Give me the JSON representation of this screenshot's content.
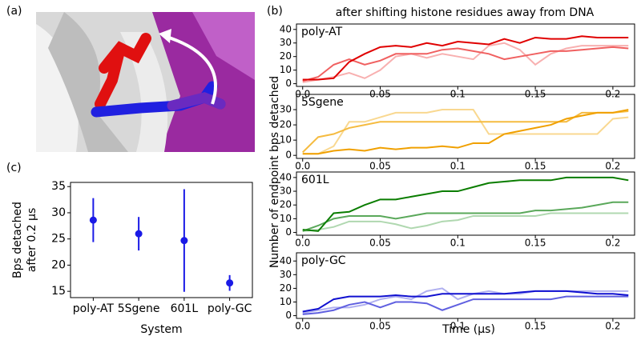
{
  "panel_labels": [
    "(a)",
    "(b)",
    "(c)"
  ],
  "panel_b": {
    "title": "after shifting histone residues away from DNA",
    "ylabel": "Number of endpoint bps detached",
    "xlabel": "Time (μs)"
  },
  "chart_data": [
    {
      "type": "line",
      "annotation": "poly-AT",
      "annotation_color": "#e00000",
      "x": [
        0,
        0.01,
        0.02,
        0.03,
        0.04,
        0.05,
        0.06,
        0.07,
        0.08,
        0.09,
        0.1,
        0.11,
        0.12,
        0.13,
        0.14,
        0.15,
        0.16,
        0.17,
        0.18,
        0.19,
        0.2,
        0.21
      ],
      "xlim": [
        -0.004,
        0.214
      ],
      "xticks": [
        {
          "value": 0,
          "label": "0.0"
        },
        0.05,
        0.1,
        0.15,
        0.2
      ],
      "ylim": [
        -2,
        44
      ],
      "yticks": [
        0,
        10,
        20,
        30,
        40
      ],
      "series": [
        {
          "color": "#f8b0b0",
          "values": [
            1,
            3,
            5,
            8,
            4,
            10,
            20,
            22,
            19,
            22,
            20,
            18,
            28,
            30,
            25,
            14,
            22,
            26,
            28,
            28,
            28,
            28
          ]
        },
        {
          "color": "#f06060",
          "values": [
            2,
            5,
            14,
            18,
            14,
            17,
            22,
            22,
            22,
            25,
            26,
            24,
            22,
            18,
            20,
            22,
            24,
            24,
            25,
            26,
            27,
            26
          ]
        },
        {
          "color": "#e00000",
          "values": [
            3,
            3,
            4,
            16,
            22,
            27,
            28,
            27,
            30,
            28,
            31,
            30,
            29,
            33,
            30,
            34,
            33,
            33,
            35,
            34,
            34,
            34
          ]
        }
      ]
    },
    {
      "type": "line",
      "annotation": "5Sgene",
      "annotation_color": "#f0a000",
      "x": [
        0,
        0.01,
        0.02,
        0.03,
        0.04,
        0.05,
        0.06,
        0.07,
        0.08,
        0.09,
        0.1,
        0.11,
        0.12,
        0.13,
        0.14,
        0.15,
        0.16,
        0.17,
        0.18,
        0.19,
        0.2,
        0.21
      ],
      "xlim": [
        -0.004,
        0.214
      ],
      "xticks": [
        {
          "value": 0,
          "label": "0.0"
        },
        0.05,
        0.1,
        0.15,
        0.2
      ],
      "ylim": [
        -2,
        40
      ],
      "yticks": [
        0,
        10,
        20,
        30
      ],
      "series": [
        {
          "color": "#f9d890",
          "values": [
            1,
            1,
            6,
            22,
            22,
            25,
            28,
            28,
            28,
            30,
            30,
            30,
            14,
            14,
            14,
            14,
            14,
            14,
            14,
            14,
            24,
            25
          ]
        },
        {
          "color": "#f5bb40",
          "values": [
            2,
            12,
            14,
            18,
            20,
            22,
            22,
            22,
            22,
            22,
            22,
            22,
            22,
            22,
            22,
            22,
            22,
            22,
            28,
            28,
            28,
            29
          ]
        },
        {
          "color": "#f0a000",
          "values": [
            1,
            1,
            3,
            4,
            3,
            5,
            4,
            5,
            5,
            6,
            5,
            8,
            8,
            14,
            16,
            18,
            20,
            24,
            26,
            28,
            28,
            30
          ]
        }
      ]
    },
    {
      "type": "line",
      "annotation": "601L",
      "annotation_color": "#0a7d00",
      "x": [
        0,
        0.01,
        0.02,
        0.03,
        0.04,
        0.05,
        0.06,
        0.07,
        0.08,
        0.09,
        0.1,
        0.11,
        0.12,
        0.13,
        0.14,
        0.15,
        0.16,
        0.17,
        0.18,
        0.19,
        0.2,
        0.21
      ],
      "xlim": [
        -0.004,
        0.214
      ],
      "xticks": [
        {
          "value": 0,
          "label": "0.0"
        },
        0.05,
        0.1,
        0.15,
        0.2
      ],
      "ylim": [
        -2,
        44
      ],
      "yticks": [
        0,
        10,
        20,
        30,
        40
      ],
      "series": [
        {
          "color": "#b0d8b0",
          "values": [
            1,
            2,
            4,
            8,
            8,
            8,
            6,
            3,
            5,
            8,
            9,
            12,
            12,
            12,
            12,
            12,
            14,
            14,
            14,
            14,
            14,
            14
          ]
        },
        {
          "color": "#5aa85a",
          "values": [
            1,
            5,
            10,
            12,
            12,
            12,
            10,
            12,
            14,
            14,
            14,
            14,
            14,
            14,
            14,
            16,
            16,
            17,
            18,
            20,
            22,
            22
          ]
        },
        {
          "color": "#0a7d00",
          "values": [
            2,
            1,
            14,
            15,
            20,
            24,
            24,
            26,
            28,
            30,
            30,
            33,
            36,
            37,
            38,
            38,
            38,
            40,
            40,
            40,
            40,
            38
          ]
        }
      ]
    },
    {
      "type": "line",
      "annotation": "poly-GC",
      "annotation_color": "#1010d0",
      "x": [
        0,
        0.01,
        0.02,
        0.03,
        0.04,
        0.05,
        0.06,
        0.07,
        0.08,
        0.09,
        0.1,
        0.11,
        0.12,
        0.13,
        0.14,
        0.15,
        0.16,
        0.17,
        0.18,
        0.19,
        0.2,
        0.21
      ],
      "xlim": [
        -0.004,
        0.214
      ],
      "xticks": [
        {
          "value": 0,
          "label": "0.0"
        },
        0.05,
        0.1,
        0.15,
        0.2
      ],
      "ylim": [
        -2,
        46
      ],
      "yticks": [
        0,
        10,
        20,
        30,
        40
      ],
      "series": [
        {
          "color": "#b0b0f0",
          "values": [
            2,
            4,
            6,
            6,
            8,
            12,
            14,
            12,
            18,
            20,
            12,
            16,
            18,
            16,
            16,
            18,
            18,
            18,
            18,
            18,
            18,
            18
          ]
        },
        {
          "color": "#6060e0",
          "values": [
            1,
            2,
            4,
            8,
            10,
            6,
            10,
            10,
            9,
            4,
            8,
            12,
            12,
            12,
            12,
            12,
            12,
            14,
            14,
            14,
            14,
            14
          ]
        },
        {
          "color": "#1010d0",
          "values": [
            3,
            5,
            12,
            14,
            14,
            14,
            15,
            14,
            14,
            16,
            16,
            16,
            16,
            16,
            17,
            18,
            18,
            18,
            17,
            16,
            16,
            15
          ]
        }
      ]
    },
    {
      "type": "errorbar",
      "xlabel": "System",
      "ylabel": [
        "Bps detached",
        "after 0.2 μs"
      ],
      "categories": [
        "poly-AT",
        "5Sgene",
        "601L",
        "poly-GC"
      ],
      "values": [
        28.6,
        26,
        24.7,
        16.6
      ],
      "errors": [
        4.2,
        3.2,
        9.8,
        1.5
      ],
      "color": "#1a1ae6",
      "ylim": [
        13.8,
        35.8
      ],
      "yticks": [
        15,
        20,
        25,
        30,
        35
      ]
    }
  ]
}
